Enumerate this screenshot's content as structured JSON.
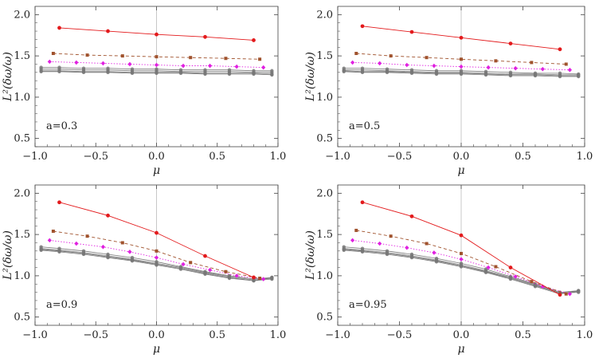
{
  "chart_data": [
    {
      "type": "line",
      "annotation": "a=0.3",
      "xlabel": "μ",
      "ylabel": "L²(δω/ω)",
      "xlim": [
        -1.0,
        1.0
      ],
      "ylim": [
        0.4,
        2.1
      ],
      "xticks": [
        "-1.0",
        "-0.5",
        "0.0",
        "0.5",
        "1.0"
      ],
      "yticks": [
        "0.5",
        "1.0",
        "1.5",
        "2.0"
      ],
      "grid": false,
      "series": [
        {
          "color": "#e31a1c",
          "marker": "circle",
          "dash": "solid",
          "x": [
            -0.8,
            -0.4,
            0.0,
            0.4,
            0.8
          ],
          "y": [
            1.84,
            1.8,
            1.76,
            1.73,
            1.69
          ]
        },
        {
          "color": "#a0522d",
          "marker": "square",
          "dash": "dashed",
          "x": [
            -0.85,
            -0.57,
            -0.28,
            0.0,
            0.28,
            0.57,
            0.85
          ],
          "y": [
            1.53,
            1.51,
            1.5,
            1.49,
            1.48,
            1.47,
            1.46
          ]
        },
        {
          "color": "#e020e0",
          "marker": "diamond",
          "dash": "dotted",
          "x": [
            -0.88,
            -0.66,
            -0.44,
            -0.22,
            0.0,
            0.22,
            0.44,
            0.66,
            0.88
          ],
          "y": [
            1.43,
            1.42,
            1.41,
            1.4,
            1.39,
            1.38,
            1.38,
            1.37,
            1.36
          ]
        },
        {
          "color": "#777777",
          "marker": "small",
          "dash": "solid",
          "x": [
            -0.95,
            -0.8,
            -0.6,
            -0.4,
            -0.2,
            0.0,
            0.2,
            0.4,
            0.6,
            0.8,
            0.95
          ],
          "y": [
            1.36,
            1.36,
            1.35,
            1.35,
            1.34,
            1.34,
            1.33,
            1.33,
            1.33,
            1.32,
            1.32
          ]
        },
        {
          "color": "#777777",
          "marker": "small",
          "dash": "solid",
          "x": [
            -0.95,
            -0.8,
            -0.6,
            -0.4,
            -0.2,
            0.0,
            0.2,
            0.4,
            0.6,
            0.8,
            0.95
          ],
          "y": [
            1.34,
            1.34,
            1.33,
            1.33,
            1.32,
            1.32,
            1.31,
            1.31,
            1.31,
            1.3,
            1.3
          ]
        },
        {
          "color": "#777777",
          "marker": "small",
          "dash": "solid",
          "x": [
            -0.95,
            -0.8,
            -0.6,
            -0.4,
            -0.2,
            0.0,
            0.2,
            0.4,
            0.6,
            0.8,
            0.95
          ],
          "y": [
            1.32,
            1.32,
            1.31,
            1.31,
            1.3,
            1.3,
            1.3,
            1.29,
            1.29,
            1.29,
            1.28
          ]
        },
        {
          "color": "#777777",
          "marker": "small",
          "dash": "solid",
          "x": [
            -0.95,
            -0.8,
            -0.6,
            -0.4,
            -0.2,
            0.0,
            0.2,
            0.4,
            0.6,
            0.8,
            0.95
          ],
          "y": [
            1.31,
            1.31,
            1.3,
            1.3,
            1.29,
            1.29,
            1.29,
            1.28,
            1.28,
            1.28,
            1.27
          ]
        }
      ]
    },
    {
      "type": "line",
      "annotation": "a=0.5",
      "xlabel": "μ",
      "ylabel": "L²(δω/ω)",
      "xlim": [
        -1.0,
        1.0
      ],
      "ylim": [
        0.4,
        2.1
      ],
      "xticks": [
        "-1.0",
        "-0.5",
        "0.0",
        "0.5",
        "1.0"
      ],
      "yticks": [
        "0.5",
        "1.0",
        "1.5",
        "2.0"
      ],
      "grid": false,
      "series": [
        {
          "color": "#e31a1c",
          "marker": "circle",
          "dash": "solid",
          "x": [
            -0.8,
            -0.4,
            0.0,
            0.4,
            0.8
          ],
          "y": [
            1.86,
            1.79,
            1.72,
            1.65,
            1.58
          ]
        },
        {
          "color": "#a0522d",
          "marker": "square",
          "dash": "dashed",
          "x": [
            -0.85,
            -0.57,
            -0.28,
            0.0,
            0.28,
            0.57,
            0.85
          ],
          "y": [
            1.53,
            1.5,
            1.48,
            1.46,
            1.44,
            1.42,
            1.4
          ]
        },
        {
          "color": "#e020e0",
          "marker": "diamond",
          "dash": "dotted",
          "x": [
            -0.88,
            -0.66,
            -0.44,
            -0.22,
            0.0,
            0.22,
            0.44,
            0.66,
            0.88
          ],
          "y": [
            1.42,
            1.41,
            1.39,
            1.38,
            1.37,
            1.36,
            1.35,
            1.34,
            1.33
          ]
        },
        {
          "color": "#777777",
          "marker": "small",
          "dash": "solid",
          "x": [
            -0.95,
            -0.8,
            -0.6,
            -0.4,
            -0.2,
            0.0,
            0.2,
            0.4,
            0.6,
            0.8,
            0.95
          ],
          "y": [
            1.35,
            1.35,
            1.34,
            1.33,
            1.32,
            1.32,
            1.31,
            1.3,
            1.29,
            1.29,
            1.28
          ]
        },
        {
          "color": "#777777",
          "marker": "small",
          "dash": "solid",
          "x": [
            -0.95,
            -0.8,
            -0.6,
            -0.4,
            -0.2,
            0.0,
            0.2,
            0.4,
            0.6,
            0.8,
            0.95
          ],
          "y": [
            1.33,
            1.33,
            1.32,
            1.31,
            1.3,
            1.3,
            1.29,
            1.28,
            1.28,
            1.27,
            1.27
          ]
        },
        {
          "color": "#777777",
          "marker": "small",
          "dash": "solid",
          "x": [
            -0.95,
            -0.8,
            -0.6,
            -0.4,
            -0.2,
            0.0,
            0.2,
            0.4,
            0.6,
            0.8,
            0.95
          ],
          "y": [
            1.32,
            1.31,
            1.31,
            1.3,
            1.29,
            1.29,
            1.28,
            1.27,
            1.27,
            1.26,
            1.26
          ]
        },
        {
          "color": "#777777",
          "marker": "small",
          "dash": "solid",
          "x": [
            -0.95,
            -0.8,
            -0.6,
            -0.4,
            -0.2,
            0.0,
            0.2,
            0.4,
            0.6,
            0.8,
            0.95
          ],
          "y": [
            1.31,
            1.3,
            1.3,
            1.29,
            1.28,
            1.28,
            1.27,
            1.26,
            1.26,
            1.25,
            1.25
          ]
        }
      ]
    },
    {
      "type": "line",
      "annotation": "a=0.9",
      "xlabel": "μ",
      "ylabel": "L²(δω/ω)",
      "xlim": [
        -1.0,
        1.0
      ],
      "ylim": [
        0.4,
        2.1
      ],
      "xticks": [
        "-1.0",
        "-0.5",
        "0.0",
        "0.5",
        "1.0"
      ],
      "yticks": [
        "0.5",
        "1.0",
        "1.5",
        "2.0"
      ],
      "grid": false,
      "series": [
        {
          "color": "#e31a1c",
          "marker": "circle",
          "dash": "solid",
          "x": [
            -0.8,
            -0.4,
            0.0,
            0.4,
            0.8
          ],
          "y": [
            1.89,
            1.73,
            1.52,
            1.24,
            0.98
          ]
        },
        {
          "color": "#a0522d",
          "marker": "square",
          "dash": "dashed",
          "x": [
            -0.85,
            -0.57,
            -0.28,
            0.0,
            0.28,
            0.57,
            0.85
          ],
          "y": [
            1.54,
            1.48,
            1.4,
            1.3,
            1.16,
            1.05,
            0.97
          ]
        },
        {
          "color": "#e020e0",
          "marker": "diamond",
          "dash": "dotted",
          "x": [
            -0.88,
            -0.66,
            -0.44,
            -0.22,
            0.0,
            0.22,
            0.44,
            0.66,
            0.88
          ],
          "y": [
            1.43,
            1.39,
            1.35,
            1.29,
            1.22,
            1.14,
            1.07,
            1.0,
            0.96
          ]
        },
        {
          "color": "#777777",
          "marker": "small",
          "dash": "solid",
          "x": [
            -0.95,
            -0.8,
            -0.6,
            -0.4,
            -0.2,
            0.0,
            0.2,
            0.4,
            0.6,
            0.8,
            0.95
          ],
          "y": [
            1.35,
            1.33,
            1.3,
            1.26,
            1.22,
            1.17,
            1.11,
            1.05,
            1.0,
            0.96,
            0.98
          ]
        },
        {
          "color": "#777777",
          "marker": "small",
          "dash": "solid",
          "x": [
            -0.95,
            -0.8,
            -0.6,
            -0.4,
            -0.2,
            0.0,
            0.2,
            0.4,
            0.6,
            0.8,
            0.95
          ],
          "y": [
            1.33,
            1.31,
            1.28,
            1.24,
            1.2,
            1.15,
            1.1,
            1.04,
            0.99,
            0.95,
            0.97
          ]
        },
        {
          "color": "#777777",
          "marker": "small",
          "dash": "solid",
          "x": [
            -0.95,
            -0.8,
            -0.6,
            -0.4,
            -0.2,
            0.0,
            0.2,
            0.4,
            0.6,
            0.8,
            0.95
          ],
          "y": [
            1.32,
            1.3,
            1.27,
            1.23,
            1.19,
            1.14,
            1.09,
            1.03,
            0.98,
            0.94,
            0.96
          ]
        },
        {
          "color": "#777777",
          "marker": "small",
          "dash": "solid",
          "x": [
            -0.95,
            -0.8,
            -0.6,
            -0.4,
            -0.2,
            0.0,
            0.2,
            0.4,
            0.6,
            0.8,
            0.95
          ],
          "y": [
            1.31,
            1.29,
            1.26,
            1.22,
            1.18,
            1.13,
            1.08,
            1.02,
            0.97,
            0.94,
            0.98
          ]
        }
      ]
    },
    {
      "type": "line",
      "annotation": "a=0.95",
      "xlabel": "μ",
      "ylabel": "L²(δω/ω)",
      "xlim": [
        -1.0,
        1.0
      ],
      "ylim": [
        0.4,
        2.1
      ],
      "xticks": [
        "-1.0",
        "-0.5",
        "0.0",
        "0.5",
        "1.0"
      ],
      "yticks": [
        "0.5",
        "1.0",
        "1.5",
        "2.0"
      ],
      "grid": false,
      "series": [
        {
          "color": "#e31a1c",
          "marker": "circle",
          "dash": "solid",
          "x": [
            -0.8,
            -0.4,
            0.0,
            0.4,
            0.8
          ],
          "y": [
            1.89,
            1.72,
            1.49,
            1.1,
            0.77
          ]
        },
        {
          "color": "#a0522d",
          "marker": "square",
          "dash": "dashed",
          "x": [
            -0.85,
            -0.57,
            -0.28,
            0.0,
            0.28,
            0.57,
            0.85
          ],
          "y": [
            1.55,
            1.48,
            1.39,
            1.27,
            1.11,
            0.93,
            0.78
          ]
        },
        {
          "color": "#e020e0",
          "marker": "diamond",
          "dash": "dotted",
          "x": [
            -0.88,
            -0.66,
            -0.44,
            -0.22,
            0.0,
            0.22,
            0.44,
            0.66,
            0.88
          ],
          "y": [
            1.43,
            1.39,
            1.34,
            1.28,
            1.2,
            1.1,
            0.99,
            0.87,
            0.78
          ]
        },
        {
          "color": "#777777",
          "marker": "small",
          "dash": "solid",
          "x": [
            -0.95,
            -0.8,
            -0.6,
            -0.4,
            -0.2,
            0.0,
            0.2,
            0.4,
            0.6,
            0.8,
            0.95
          ],
          "y": [
            1.35,
            1.33,
            1.3,
            1.26,
            1.21,
            1.15,
            1.08,
            0.99,
            0.9,
            0.8,
            0.82
          ]
        },
        {
          "color": "#777777",
          "marker": "small",
          "dash": "solid",
          "x": [
            -0.95,
            -0.8,
            -0.6,
            -0.4,
            -0.2,
            0.0,
            0.2,
            0.4,
            0.6,
            0.8,
            0.95
          ],
          "y": [
            1.33,
            1.31,
            1.28,
            1.24,
            1.19,
            1.13,
            1.06,
            0.98,
            0.89,
            0.79,
            0.81
          ]
        },
        {
          "color": "#777777",
          "marker": "small",
          "dash": "solid",
          "x": [
            -0.95,
            -0.8,
            -0.6,
            -0.4,
            -0.2,
            0.0,
            0.2,
            0.4,
            0.6,
            0.8,
            0.95
          ],
          "y": [
            1.32,
            1.3,
            1.27,
            1.23,
            1.18,
            1.12,
            1.05,
            0.97,
            0.88,
            0.79,
            0.8
          ]
        },
        {
          "color": "#777777",
          "marker": "small",
          "dash": "solid",
          "x": [
            -0.95,
            -0.8,
            -0.6,
            -0.4,
            -0.2,
            0.0,
            0.2,
            0.4,
            0.6,
            0.8,
            0.95
          ],
          "y": [
            1.31,
            1.29,
            1.26,
            1.22,
            1.17,
            1.11,
            1.04,
            0.96,
            0.87,
            0.78,
            0.82
          ]
        }
      ]
    }
  ]
}
